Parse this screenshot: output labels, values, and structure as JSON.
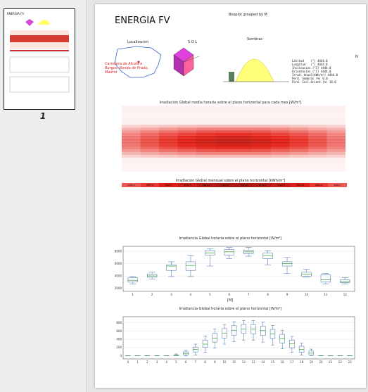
{
  "thumbnail": {
    "page_number": "1"
  },
  "page": {
    "title": "ENERGIA FV",
    "top_right_caption": "Boxplot grouped by M",
    "location_label": "Localizacion",
    "location_note": "Carretera de Alcala a Burgos, Ronda de Prado, Madrid",
    "sun_label": "S O L",
    "shadow_label": "Sombras",
    "params_header": "N",
    "params": [
      {
        "label": "Latitud    (°)",
        "value": "4444.0"
      },
      {
        "label": "Longitud   (°)",
        "value": "4444.0"
      },
      {
        "label": "Inclinacion (°C)",
        "value": "4444.0"
      },
      {
        "label": "Orientacion (°C)",
        "value": "4444.0"
      },
      {
        "label": "Irrad. Anual(kWh/m²)",
        "value": "4444.0"
      },
      {
        "label": "Perd. Sombras (%)",
        "value": "0.0"
      },
      {
        "label": "Perd. Incl.Orient.(%)",
        "value": "18.0"
      }
    ],
    "heatmap_title": "Irradiacion Global media horaria sobre el plano horizontal para cada mes [W/m²]",
    "monthly_title": "Irradiacion Global mensual sobre el plano horizontal [kWh/m²]",
    "monthly_values": [
      "2794.3",
      "3857.8",
      "5445.3",
      "5532.7",
      "7643.4",
      "7424.2",
      "7571.3",
      "6712.8",
      "5744.4",
      "4567.8",
      "2843.6",
      "2394.7"
    ],
    "box1_title": "Irradiancia Global horaria sobre el plano horizontal [W/m²]",
    "box1_xlabel": "[M]",
    "box2_title": "Irradiancia Global horaria sobre el plano horizontal [W/m²]"
  },
  "chart_data": [
    {
      "type": "box",
      "title": "Irradiancia Global horaria sobre el plano horizontal [W/m²]",
      "xlabel": "[M]",
      "categories": [
        "1",
        "2",
        "3",
        "4",
        "5",
        "6",
        "7",
        "8",
        "9",
        "10",
        "11",
        "12"
      ],
      "ylim": [
        1500,
        8800
      ],
      "yticks": [
        "2000",
        "4000",
        "6000",
        "8000"
      ],
      "boxes": [
        {
          "min": 2700,
          "q1": 3000,
          "median": 3300,
          "q3": 3700,
          "max": 3900
        },
        {
          "min": 3500,
          "q1": 3800,
          "median": 4000,
          "q3": 4300,
          "max": 4600
        },
        {
          "min": 3900,
          "q1": 4900,
          "median": 5600,
          "q3": 5800,
          "max": 6300
        },
        {
          "min": 3900,
          "q1": 4900,
          "median": 5700,
          "q3": 6300,
          "max": 7300
        },
        {
          "min": 5600,
          "q1": 7400,
          "median": 7700,
          "q3": 8100,
          "max": 8400
        },
        {
          "min": 6800,
          "q1": 7400,
          "median": 7900,
          "q3": 8300,
          "max": 8600
        },
        {
          "min": 7200,
          "q1": 7600,
          "median": 7900,
          "q3": 8200,
          "max": 8600
        },
        {
          "min": 5800,
          "q1": 6800,
          "median": 7300,
          "q3": 7700,
          "max": 8100
        },
        {
          "min": 4400,
          "q1": 5600,
          "median": 6000,
          "q3": 6300,
          "max": 7000
        },
        {
          "min": 3800,
          "q1": 3900,
          "median": 4300,
          "q3": 4600,
          "max": 5100
        },
        {
          "min": 2700,
          "q1": 3000,
          "median": 3400,
          "q3": 4200,
          "max": 4400
        },
        {
          "min": 2700,
          "q1": 2900,
          "median": 3100,
          "q3": 3400,
          "max": 3700
        }
      ]
    },
    {
      "type": "box",
      "title": "Irradiancia Global horaria sobre el plano horizontal [W/m²]",
      "categories": [
        "0",
        "1",
        "2",
        "3",
        "4",
        "5",
        "6",
        "7",
        "8",
        "9",
        "10",
        "11",
        "12",
        "13",
        "14",
        "15",
        "16",
        "17",
        "18",
        "19",
        "20",
        "21",
        "22",
        "23"
      ],
      "ylim": [
        -80,
        950
      ],
      "yticks": [
        "0",
        "200",
        "400",
        "600",
        "800"
      ],
      "boxes": [
        {
          "min": 0,
          "q1": 0,
          "median": 0,
          "q3": 0,
          "max": 0
        },
        {
          "min": 0,
          "q1": 0,
          "median": 0,
          "q3": 0,
          "max": 0
        },
        {
          "min": 0,
          "q1": 0,
          "median": 0,
          "q3": 0,
          "max": 0
        },
        {
          "min": 0,
          "q1": 0,
          "median": 0,
          "q3": 0,
          "max": 0
        },
        {
          "min": 0,
          "q1": 0,
          "median": 0,
          "q3": 0,
          "max": 0
        },
        {
          "min": 0,
          "q1": 0,
          "median": 5,
          "q3": 20,
          "max": 40
        },
        {
          "min": 0,
          "q1": 20,
          "median": 50,
          "q3": 90,
          "max": 130
        },
        {
          "min": 20,
          "q1": 90,
          "median": 150,
          "q3": 210,
          "max": 280
        },
        {
          "min": 80,
          "q1": 200,
          "median": 280,
          "q3": 380,
          "max": 480
        },
        {
          "min": 180,
          "q1": 330,
          "median": 430,
          "q3": 540,
          "max": 650
        },
        {
          "min": 280,
          "q1": 430,
          "median": 550,
          "q3": 660,
          "max": 760
        },
        {
          "min": 340,
          "q1": 500,
          "median": 620,
          "q3": 730,
          "max": 830
        },
        {
          "min": 380,
          "q1": 540,
          "median": 650,
          "q3": 760,
          "max": 860
        },
        {
          "min": 380,
          "q1": 530,
          "median": 650,
          "q3": 760,
          "max": 860
        },
        {
          "min": 330,
          "q1": 490,
          "median": 610,
          "q3": 720,
          "max": 820
        },
        {
          "min": 260,
          "q1": 420,
          "median": 530,
          "q3": 640,
          "max": 740
        },
        {
          "min": 170,
          "q1": 310,
          "median": 420,
          "q3": 520,
          "max": 620
        },
        {
          "min": 80,
          "q1": 190,
          "median": 290,
          "q3": 380,
          "max": 470
        },
        {
          "min": 20,
          "q1": 80,
          "median": 150,
          "q3": 230,
          "max": 300
        },
        {
          "min": 0,
          "q1": 20,
          "median": 60,
          "q3": 110,
          "max": 160
        },
        {
          "min": 0,
          "q1": 0,
          "median": 0,
          "q3": 0,
          "max": 0
        },
        {
          "min": 0,
          "q1": 0,
          "median": 0,
          "q3": 0,
          "max": 0
        },
        {
          "min": 0,
          "q1": 0,
          "median": 0,
          "q3": 0,
          "max": 0
        },
        {
          "min": 0,
          "q1": 0,
          "median": 0,
          "q3": 0,
          "max": 0
        }
      ]
    }
  ]
}
